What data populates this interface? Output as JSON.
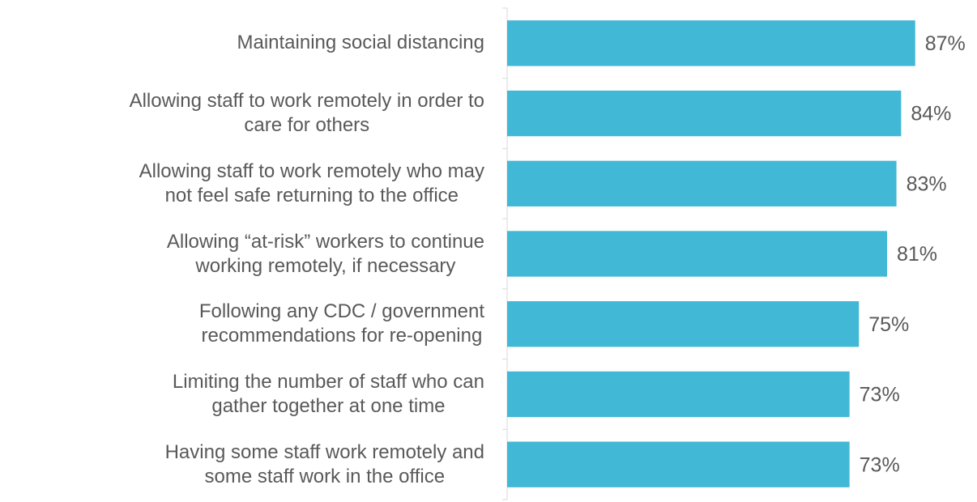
{
  "chart_data": {
    "type": "hbar",
    "categories": [
      "Maintaining social distancing",
      "Allowing staff to work remotely in order to\ncare for others",
      "Allowing staff to work remotely who may\nnot feel safe returning to the office",
      "Allowing “at-risk” workers to continue\nworking remotely, if necessary",
      "Following any CDC / government\nrecommendations for re-opening",
      "Limiting the number of staff who can\ngather together at one time",
      "Having some staff work remotely and\nsome staff work in the office"
    ],
    "values": [
      87,
      84,
      83,
      81,
      75,
      73,
      73
    ],
    "value_labels": [
      "87%",
      "84%",
      "83%",
      "81%",
      "75%",
      "73%",
      "73%"
    ],
    "color": "#41b8d5",
    "xlim": [
      0,
      100
    ]
  }
}
